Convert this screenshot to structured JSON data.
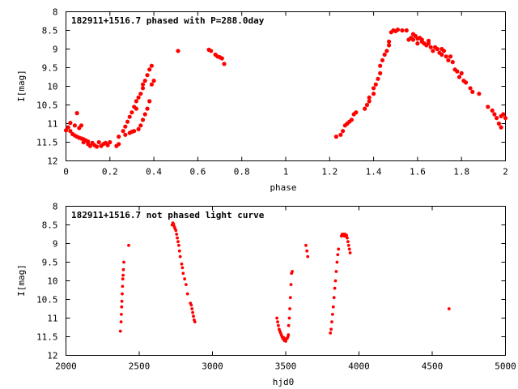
{
  "chart_data": [
    {
      "type": "scatter",
      "title": "182911+1516.7 phased with P=288.0day",
      "xlabel": "phase",
      "ylabel": "I[mag]",
      "xlim": [
        0,
        2
      ],
      "ylim": [
        8,
        12
      ],
      "y_inverted": true,
      "grid": false,
      "marker_color": "#ff0000",
      "xticks": [
        "0",
        "0.2",
        "0.4",
        "0.6",
        "0.8",
        "1",
        "1.2",
        "1.4",
        "1.6",
        "1.8",
        "2"
      ],
      "yticks": [
        "8",
        "8.5",
        "9",
        "9.5",
        "10",
        "10.5",
        "11",
        "11.5",
        "12"
      ],
      "series": [
        {
          "points": [
            [
              0.0,
              11.18
            ],
            [
              0.01,
              11.1
            ],
            [
              0.02,
              10.98
            ],
            [
              0.02,
              11.2
            ],
            [
              0.03,
              11.28
            ],
            [
              0.04,
              11.05
            ],
            [
              0.04,
              11.32
            ],
            [
              0.05,
              10.72
            ],
            [
              0.05,
              11.35
            ],
            [
              0.06,
              11.12
            ],
            [
              0.06,
              11.38
            ],
            [
              0.07,
              11.4
            ],
            [
              0.07,
              11.05
            ],
            [
              0.08,
              11.42
            ],
            [
              0.08,
              11.5
            ],
            [
              0.09,
              11.45
            ],
            [
              0.1,
              11.48
            ],
            [
              0.1,
              11.55
            ],
            [
              0.11,
              11.6
            ],
            [
              0.12,
              11.52
            ],
            [
              0.13,
              11.58
            ],
            [
              0.14,
              11.62
            ],
            [
              0.15,
              11.5
            ],
            [
              0.16,
              11.6
            ],
            [
              0.17,
              11.55
            ],
            [
              0.18,
              11.52
            ],
            [
              0.19,
              11.58
            ],
            [
              0.2,
              11.5
            ],
            [
              0.23,
              11.6
            ],
            [
              0.24,
              11.55
            ],
            [
              0.24,
              11.35
            ],
            [
              0.26,
              11.2
            ],
            [
              0.27,
              11.3
            ],
            [
              0.27,
              11.08
            ],
            [
              0.28,
              10.95
            ],
            [
              0.29,
              11.25
            ],
            [
              0.29,
              10.82
            ],
            [
              0.3,
              10.7
            ],
            [
              0.3,
              11.22
            ],
            [
              0.31,
              10.55
            ],
            [
              0.31,
              11.2
            ],
            [
              0.32,
              10.4
            ],
            [
              0.32,
              10.6
            ],
            [
              0.33,
              11.15
            ],
            [
              0.33,
              10.3
            ],
            [
              0.34,
              10.2
            ],
            [
              0.34,
              11.05
            ],
            [
              0.35,
              10.05
            ],
            [
              0.35,
              10.9
            ],
            [
              0.35,
              9.95
            ],
            [
              0.36,
              10.75
            ],
            [
              0.36,
              9.85
            ],
            [
              0.37,
              10.6
            ],
            [
              0.37,
              9.7
            ],
            [
              0.38,
              10.4
            ],
            [
              0.38,
              9.55
            ],
            [
              0.39,
              9.95
            ],
            [
              0.39,
              9.45
            ],
            [
              0.4,
              9.85
            ],
            [
              0.51,
              9.05
            ],
            [
              0.65,
              9.02
            ],
            [
              0.66,
              9.05
            ],
            [
              0.68,
              9.15
            ],
            [
              0.69,
              9.2
            ],
            [
              0.7,
              9.22
            ],
            [
              0.71,
              9.25
            ],
            [
              0.72,
              9.4
            ],
            [
              1.23,
              11.35
            ],
            [
              1.25,
              11.3
            ],
            [
              1.26,
              11.2
            ],
            [
              1.27,
              11.05
            ],
            [
              1.28,
              11.0
            ],
            [
              1.29,
              10.95
            ],
            [
              1.3,
              10.9
            ],
            [
              1.31,
              10.75
            ],
            [
              1.32,
              10.7
            ],
            [
              1.36,
              10.6
            ],
            [
              1.37,
              10.5
            ],
            [
              1.38,
              10.4
            ],
            [
              1.38,
              10.3
            ],
            [
              1.4,
              10.2
            ],
            [
              1.4,
              10.05
            ],
            [
              1.41,
              9.95
            ],
            [
              1.42,
              9.8
            ],
            [
              1.43,
              9.65
            ],
            [
              1.43,
              9.45
            ],
            [
              1.44,
              9.3
            ],
            [
              1.45,
              9.15
            ],
            [
              1.46,
              9.05
            ],
            [
              1.47,
              8.9
            ],
            [
              1.47,
              8.8
            ],
            [
              1.48,
              8.55
            ],
            [
              1.49,
              8.5
            ],
            [
              1.5,
              8.52
            ],
            [
              1.51,
              8.48
            ],
            [
              1.53,
              8.5
            ],
            [
              1.55,
              8.5
            ],
            [
              1.56,
              8.75
            ],
            [
              1.57,
              8.7
            ],
            [
              1.58,
              8.6
            ],
            [
              1.58,
              8.75
            ],
            [
              1.59,
              8.65
            ],
            [
              1.6,
              8.72
            ],
            [
              1.6,
              8.85
            ],
            [
              1.61,
              8.7
            ],
            [
              1.62,
              8.75
            ],
            [
              1.62,
              8.8
            ],
            [
              1.63,
              8.85
            ],
            [
              1.64,
              8.9
            ],
            [
              1.65,
              8.78
            ],
            [
              1.65,
              8.85
            ],
            [
              1.66,
              8.95
            ],
            [
              1.67,
              9.05
            ],
            [
              1.68,
              8.95
            ],
            [
              1.69,
              9.0
            ],
            [
              1.7,
              9.1
            ],
            [
              1.71,
              9.0
            ],
            [
              1.71,
              9.15
            ],
            [
              1.72,
              9.05
            ],
            [
              1.73,
              9.2
            ],
            [
              1.74,
              9.3
            ],
            [
              1.75,
              9.2
            ],
            [
              1.76,
              9.35
            ],
            [
              1.77,
              9.55
            ],
            [
              1.78,
              9.6
            ],
            [
              1.79,
              9.75
            ],
            [
              1.8,
              9.65
            ],
            [
              1.81,
              9.85
            ],
            [
              1.82,
              9.9
            ],
            [
              1.84,
              10.05
            ],
            [
              1.85,
              10.15
            ],
            [
              1.88,
              10.2
            ],
            [
              1.92,
              10.55
            ],
            [
              1.94,
              10.65
            ],
            [
              1.95,
              10.75
            ],
            [
              1.96,
              10.85
            ],
            [
              1.97,
              11.0
            ],
            [
              1.98,
              11.1
            ],
            [
              1.98,
              10.8
            ],
            [
              1.99,
              10.75
            ],
            [
              2.0,
              10.85
            ]
          ]
        }
      ]
    },
    {
      "type": "scatter",
      "title": "182911+1516.7 not phased light curve",
      "xlabel": "hjd0",
      "ylabel": "I[mag]",
      "xlim": [
        2000,
        5000
      ],
      "ylim": [
        8,
        12
      ],
      "y_inverted": true,
      "grid": false,
      "marker_color": "#ff0000",
      "xticks": [
        "2000",
        "2500",
        "3000",
        "3500",
        "4000",
        "4500",
        "5000"
      ],
      "yticks": [
        "8",
        "8.5",
        "9",
        "9.5",
        "10",
        "10.5",
        "11",
        "11.5",
        "12"
      ],
      "series": [
        {
          "points": [
            [
              2372,
              11.35
            ],
            [
              2376,
              11.1
            ],
            [
              2378,
              10.9
            ],
            [
              2380,
              10.7
            ],
            [
              2382,
              10.55
            ],
            [
              2384,
              10.35
            ],
            [
              2386,
              10.15
            ],
            [
              2388,
              9.95
            ],
            [
              2390,
              9.85
            ],
            [
              2392,
              9.7
            ],
            [
              2395,
              9.5
            ],
            [
              2428,
              9.05
            ],
            [
              2725,
              8.5
            ],
            [
              2730,
              8.45
            ],
            [
              2735,
              8.48
            ],
            [
              2740,
              8.55
            ],
            [
              2745,
              8.6
            ],
            [
              2750,
              8.65
            ],
            [
              2755,
              8.75
            ],
            [
              2760,
              8.85
            ],
            [
              2765,
              8.95
            ],
            [
              2770,
              9.05
            ],
            [
              2775,
              9.2
            ],
            [
              2780,
              9.35
            ],
            [
              2790,
              9.55
            ],
            [
              2795,
              9.65
            ],
            [
              2800,
              9.8
            ],
            [
              2810,
              9.95
            ],
            [
              2820,
              10.1
            ],
            [
              2830,
              10.35
            ],
            [
              2850,
              10.6
            ],
            [
              2855,
              10.65
            ],
            [
              2860,
              10.75
            ],
            [
              2865,
              10.85
            ],
            [
              2870,
              10.95
            ],
            [
              2875,
              11.05
            ],
            [
              2880,
              11.1
            ],
            [
              3440,
              11.0
            ],
            [
              3445,
              11.1
            ],
            [
              3450,
              11.2
            ],
            [
              3455,
              11.3
            ],
            [
              3460,
              11.35
            ],
            [
              3465,
              11.4
            ],
            [
              3470,
              11.45
            ],
            [
              3475,
              11.5
            ],
            [
              3480,
              11.55
            ],
            [
              3485,
              11.52
            ],
            [
              3490,
              11.6
            ],
            [
              3495,
              11.58
            ],
            [
              3500,
              11.62
            ],
            [
              3505,
              11.55
            ],
            [
              3510,
              11.55
            ],
            [
              3515,
              11.5
            ],
            [
              3518,
              11.45
            ],
            [
              3520,
              11.2
            ],
            [
              3525,
              11.0
            ],
            [
              3528,
              10.75
            ],
            [
              3532,
              10.45
            ],
            [
              3536,
              10.1
            ],
            [
              3540,
              9.8
            ],
            [
              3545,
              9.75
            ],
            [
              3638,
              9.05
            ],
            [
              3645,
              9.2
            ],
            [
              3650,
              9.35
            ],
            [
              3805,
              11.4
            ],
            [
              3810,
              11.3
            ],
            [
              3815,
              11.1
            ],
            [
              3820,
              10.9
            ],
            [
              3825,
              10.7
            ],
            [
              3830,
              10.45
            ],
            [
              3835,
              10.2
            ],
            [
              3840,
              10.0
            ],
            [
              3845,
              9.75
            ],
            [
              3850,
              9.5
            ],
            [
              3855,
              9.3
            ],
            [
              3860,
              9.15
            ],
            [
              3880,
              8.8
            ],
            [
              3885,
              8.75
            ],
            [
              3890,
              8.78
            ],
            [
              3895,
              8.75
            ],
            [
              3900,
              8.8
            ],
            [
              3905,
              8.75
            ],
            [
              3910,
              8.8
            ],
            [
              3915,
              8.78
            ],
            [
              3920,
              8.85
            ],
            [
              3925,
              8.95
            ],
            [
              3930,
              9.05
            ],
            [
              3935,
              9.15
            ],
            [
              3940,
              9.25
            ],
            [
              4615,
              10.75
            ]
          ]
        }
      ]
    }
  ]
}
